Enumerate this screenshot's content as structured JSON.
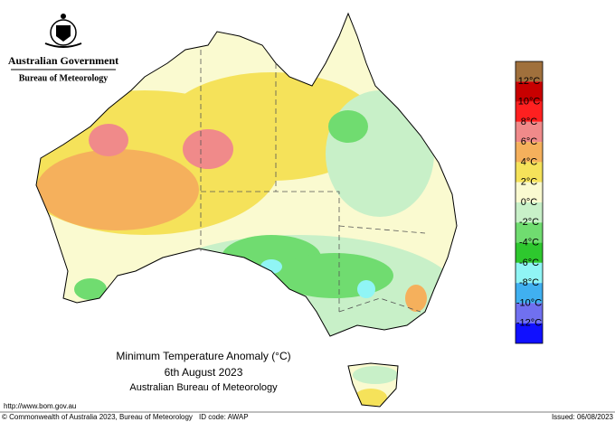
{
  "header": {
    "government": "Australian Government",
    "bureau": "Bureau of Meteorology"
  },
  "title": {
    "line1": "Minimum Temperature Anomaly (°C)",
    "line2": "6th August 2023",
    "line3": "Australian Bureau of Meteorology"
  },
  "legend": {
    "labels": [
      "12°C",
      "10°C",
      "8°C",
      "6°C",
      "4°C",
      "2°C",
      "0°C",
      "-2°C",
      "-4°C",
      "-6°C",
      "-8°C",
      "-10°C",
      "-12°C"
    ],
    "colors": [
      "#a0703c",
      "#c80000",
      "#ff2020",
      "#f08a8a",
      "#f5b05c",
      "#f5e25a",
      "#fafad0",
      "#c8f0c8",
      "#70dc70",
      "#2ec82e",
      "#90f5f5",
      "#40b0f0",
      "#7070f0",
      "#1010ff"
    ]
  },
  "footer": {
    "url": "http://www.bom.gov.au",
    "copyright": "© Commonwealth of Australia 2023, Bureau of Meteorology",
    "id_code": "ID code: AWAP",
    "issued": "Issued: 06/08/2023"
  }
}
